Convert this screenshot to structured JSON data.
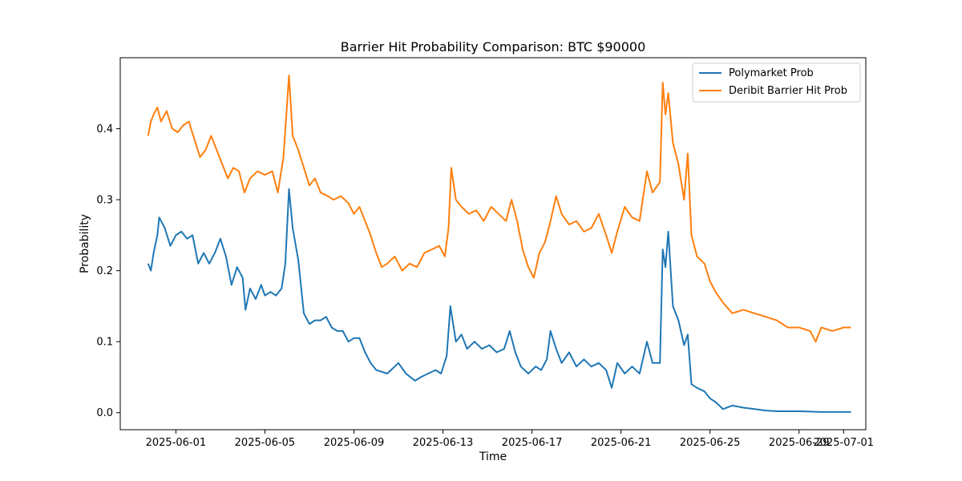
{
  "chart_data": {
    "type": "line",
    "title": "Barrier Hit Probability Comparison: BTC $90000",
    "xlabel": "Time",
    "ylabel": "Probability",
    "xlim": [
      "2025-05-29T12:00",
      "2025-07-02T00:00"
    ],
    "ylim": [
      -0.024,
      0.5
    ],
    "x_ticks": [
      "2025-06-01",
      "2025-06-05",
      "2025-06-09",
      "2025-06-13",
      "2025-06-17",
      "2025-06-21",
      "2025-06-25",
      "2025-06-29",
      "2025-07-01"
    ],
    "y_ticks": [
      0.0,
      0.1,
      0.2,
      0.3,
      0.4
    ],
    "y_tick_labels": [
      "0.0",
      "0.1",
      "0.2",
      "0.3",
      "0.4"
    ],
    "legend_position": "top-right",
    "grid": false,
    "series": [
      {
        "name": "Polymarket Prob",
        "color": "#1f77b4",
        "points": [
          [
            "2025-05-30T18:00",
            0.21
          ],
          [
            "2025-05-30T21:00",
            0.2
          ],
          [
            "2025-05-31T00:00",
            0.225
          ],
          [
            "2025-05-31T04:00",
            0.25
          ],
          [
            "2025-05-31T06:00",
            0.275
          ],
          [
            "2025-05-31T12:00",
            0.26
          ],
          [
            "2025-05-31T18:00",
            0.235
          ],
          [
            "2025-06-01T00:00",
            0.25
          ],
          [
            "2025-06-01T06:00",
            0.255
          ],
          [
            "2025-06-01T12:00",
            0.245
          ],
          [
            "2025-06-01T18:00",
            0.25
          ],
          [
            "2025-06-02T00:00",
            0.21
          ],
          [
            "2025-06-02T06:00",
            0.225
          ],
          [
            "2025-06-02T12:00",
            0.21
          ],
          [
            "2025-06-02T18:00",
            0.225
          ],
          [
            "2025-06-03T00:00",
            0.245
          ],
          [
            "2025-06-03T06:00",
            0.22
          ],
          [
            "2025-06-03T12:00",
            0.18
          ],
          [
            "2025-06-03T18:00",
            0.205
          ],
          [
            "2025-06-04T00:00",
            0.19
          ],
          [
            "2025-06-04T03:00",
            0.145
          ],
          [
            "2025-06-04T08:00",
            0.175
          ],
          [
            "2025-06-04T14:00",
            0.16
          ],
          [
            "2025-06-04T20:00",
            0.18
          ],
          [
            "2025-06-05T00:00",
            0.165
          ],
          [
            "2025-06-05T06:00",
            0.17
          ],
          [
            "2025-06-05T12:00",
            0.165
          ],
          [
            "2025-06-05T18:00",
            0.175
          ],
          [
            "2025-06-05T22:00",
            0.21
          ],
          [
            "2025-06-06T02:00",
            0.315
          ],
          [
            "2025-06-06T06:00",
            0.26
          ],
          [
            "2025-06-06T12:00",
            0.215
          ],
          [
            "2025-06-06T18:00",
            0.14
          ],
          [
            "2025-06-07T00:00",
            0.125
          ],
          [
            "2025-06-07T06:00",
            0.13
          ],
          [
            "2025-06-07T12:00",
            0.13
          ],
          [
            "2025-06-07T18:00",
            0.135
          ],
          [
            "2025-06-08T00:00",
            0.12
          ],
          [
            "2025-06-08T06:00",
            0.115
          ],
          [
            "2025-06-08T12:00",
            0.115
          ],
          [
            "2025-06-08T18:00",
            0.1
          ],
          [
            "2025-06-09T00:00",
            0.105
          ],
          [
            "2025-06-09T06:00",
            0.105
          ],
          [
            "2025-06-09T12:00",
            0.085
          ],
          [
            "2025-06-09T18:00",
            0.07
          ],
          [
            "2025-06-10T00:00",
            0.06
          ],
          [
            "2025-06-10T12:00",
            0.055
          ],
          [
            "2025-06-11T00:00",
            0.07
          ],
          [
            "2025-06-11T08:00",
            0.055
          ],
          [
            "2025-06-11T18:00",
            0.045
          ],
          [
            "2025-06-12T00:00",
            0.05
          ],
          [
            "2025-06-12T08:00",
            0.055
          ],
          [
            "2025-06-12T16:00",
            0.06
          ],
          [
            "2025-06-12T22:00",
            0.055
          ],
          [
            "2025-06-13T04:00",
            0.08
          ],
          [
            "2025-06-13T08:00",
            0.15
          ],
          [
            "2025-06-13T14:00",
            0.1
          ],
          [
            "2025-06-13T20:00",
            0.11
          ],
          [
            "2025-06-14T02:00",
            0.09
          ],
          [
            "2025-06-14T10:00",
            0.1
          ],
          [
            "2025-06-14T18:00",
            0.09
          ],
          [
            "2025-06-15T02:00",
            0.095
          ],
          [
            "2025-06-15T10:00",
            0.085
          ],
          [
            "2025-06-15T18:00",
            0.09
          ],
          [
            "2025-06-16T00:00",
            0.115
          ],
          [
            "2025-06-16T06:00",
            0.085
          ],
          [
            "2025-06-16T12:00",
            0.065
          ],
          [
            "2025-06-16T20:00",
            0.055
          ],
          [
            "2025-06-17T04:00",
            0.065
          ],
          [
            "2025-06-17T10:00",
            0.06
          ],
          [
            "2025-06-17T16:00",
            0.075
          ],
          [
            "2025-06-17T20:00",
            0.115
          ],
          [
            "2025-06-18T02:00",
            0.09
          ],
          [
            "2025-06-18T08:00",
            0.07
          ],
          [
            "2025-06-18T16:00",
            0.085
          ],
          [
            "2025-06-19T00:00",
            0.065
          ],
          [
            "2025-06-19T08:00",
            0.075
          ],
          [
            "2025-06-19T16:00",
            0.065
          ],
          [
            "2025-06-20T00:00",
            0.07
          ],
          [
            "2025-06-20T08:00",
            0.06
          ],
          [
            "2025-06-20T14:00",
            0.035
          ],
          [
            "2025-06-20T20:00",
            0.07
          ],
          [
            "2025-06-21T04:00",
            0.055
          ],
          [
            "2025-06-21T12:00",
            0.065
          ],
          [
            "2025-06-21T20:00",
            0.055
          ],
          [
            "2025-06-22T04:00",
            0.1
          ],
          [
            "2025-06-22T10:00",
            0.07
          ],
          [
            "2025-06-22T18:00",
            0.07
          ],
          [
            "2025-06-22T21:00",
            0.23
          ],
          [
            "2025-06-23T00:00",
            0.205
          ],
          [
            "2025-06-23T03:00",
            0.255
          ],
          [
            "2025-06-23T08:00",
            0.15
          ],
          [
            "2025-06-23T14:00",
            0.13
          ],
          [
            "2025-06-23T20:00",
            0.095
          ],
          [
            "2025-06-24T00:00",
            0.11
          ],
          [
            "2025-06-24T04:00",
            0.04
          ],
          [
            "2025-06-24T10:00",
            0.035
          ],
          [
            "2025-06-24T18:00",
            0.03
          ],
          [
            "2025-06-25T00:00",
            0.02
          ],
          [
            "2025-06-25T06:00",
            0.015
          ],
          [
            "2025-06-25T14:00",
            0.005
          ],
          [
            "2025-06-26T00:00",
            0.01
          ],
          [
            "2025-06-26T12:00",
            0.007
          ],
          [
            "2025-06-27T00:00",
            0.005
          ],
          [
            "2025-06-27T12:00",
            0.003
          ],
          [
            "2025-06-28T00:00",
            0.002
          ],
          [
            "2025-06-29T00:00",
            0.002
          ],
          [
            "2025-06-30T00:00",
            0.001
          ],
          [
            "2025-07-01T00:00",
            0.001
          ],
          [
            "2025-07-01T08:00",
            0.001
          ]
        ]
      },
      {
        "name": "Deribit Barrier Hit Prob",
        "color": "#ff7f0e",
        "points": [
          [
            "2025-05-30T18:00",
            0.39
          ],
          [
            "2025-05-30T21:00",
            0.41
          ],
          [
            "2025-05-31T00:00",
            0.42
          ],
          [
            "2025-05-31T04:00",
            0.43
          ],
          [
            "2025-05-31T08:00",
            0.41
          ],
          [
            "2025-05-31T14:00",
            0.425
          ],
          [
            "2025-05-31T20:00",
            0.4
          ],
          [
            "2025-06-01T02:00",
            0.395
          ],
          [
            "2025-06-01T08:00",
            0.405
          ],
          [
            "2025-06-01T14:00",
            0.41
          ],
          [
            "2025-06-01T20:00",
            0.385
          ],
          [
            "2025-06-02T02:00",
            0.36
          ],
          [
            "2025-06-02T08:00",
            0.37
          ],
          [
            "2025-06-02T14:00",
            0.39
          ],
          [
            "2025-06-02T20:00",
            0.37
          ],
          [
            "2025-06-03T02:00",
            0.35
          ],
          [
            "2025-06-03T08:00",
            0.33
          ],
          [
            "2025-06-03T14:00",
            0.345
          ],
          [
            "2025-06-03T20:00",
            0.34
          ],
          [
            "2025-06-04T02:00",
            0.31
          ],
          [
            "2025-06-04T08:00",
            0.33
          ],
          [
            "2025-06-04T16:00",
            0.34
          ],
          [
            "2025-06-05T00:00",
            0.335
          ],
          [
            "2025-06-05T08:00",
            0.34
          ],
          [
            "2025-06-05T14:00",
            0.31
          ],
          [
            "2025-06-05T20:00",
            0.36
          ],
          [
            "2025-06-06T02:00",
            0.475
          ],
          [
            "2025-06-06T06:00",
            0.39
          ],
          [
            "2025-06-06T12:00",
            0.37
          ],
          [
            "2025-06-06T18:00",
            0.345
          ],
          [
            "2025-06-07T00:00",
            0.32
          ],
          [
            "2025-06-07T06:00",
            0.33
          ],
          [
            "2025-06-07T12:00",
            0.31
          ],
          [
            "2025-06-07T20:00",
            0.305
          ],
          [
            "2025-06-08T02:00",
            0.3
          ],
          [
            "2025-06-08T10:00",
            0.305
          ],
          [
            "2025-06-08T18:00",
            0.295
          ],
          [
            "2025-06-09T00:00",
            0.28
          ],
          [
            "2025-06-09T06:00",
            0.29
          ],
          [
            "2025-06-09T12:00",
            0.27
          ],
          [
            "2025-06-09T18:00",
            0.25
          ],
          [
            "2025-06-10T00:00",
            0.225
          ],
          [
            "2025-06-10T06:00",
            0.205
          ],
          [
            "2025-06-10T12:00",
            0.21
          ],
          [
            "2025-06-10T20:00",
            0.22
          ],
          [
            "2025-06-11T04:00",
            0.2
          ],
          [
            "2025-06-11T12:00",
            0.21
          ],
          [
            "2025-06-11T20:00",
            0.205
          ],
          [
            "2025-06-12T04:00",
            0.225
          ],
          [
            "2025-06-12T12:00",
            0.23
          ],
          [
            "2025-06-12T20:00",
            0.235
          ],
          [
            "2025-06-13T02:00",
            0.22
          ],
          [
            "2025-06-13T06:00",
            0.26
          ],
          [
            "2025-06-13T09:00",
            0.345
          ],
          [
            "2025-06-13T14:00",
            0.3
          ],
          [
            "2025-06-13T20:00",
            0.29
          ],
          [
            "2025-06-14T04:00",
            0.28
          ],
          [
            "2025-06-14T12:00",
            0.285
          ],
          [
            "2025-06-14T20:00",
            0.27
          ],
          [
            "2025-06-15T04:00",
            0.29
          ],
          [
            "2025-06-15T12:00",
            0.28
          ],
          [
            "2025-06-15T20:00",
            0.27
          ],
          [
            "2025-06-16T02:00",
            0.3
          ],
          [
            "2025-06-16T08:00",
            0.27
          ],
          [
            "2025-06-16T14:00",
            0.23
          ],
          [
            "2025-06-16T20:00",
            0.205
          ],
          [
            "2025-06-17T02:00",
            0.19
          ],
          [
            "2025-06-17T08:00",
            0.225
          ],
          [
            "2025-06-17T14:00",
            0.24
          ],
          [
            "2025-06-17T20:00",
            0.27
          ],
          [
            "2025-06-18T02:00",
            0.305
          ],
          [
            "2025-06-18T08:00",
            0.28
          ],
          [
            "2025-06-18T16:00",
            0.265
          ],
          [
            "2025-06-19T00:00",
            0.27
          ],
          [
            "2025-06-19T08:00",
            0.255
          ],
          [
            "2025-06-19T16:00",
            0.26
          ],
          [
            "2025-06-20T00:00",
            0.28
          ],
          [
            "2025-06-20T08:00",
            0.25
          ],
          [
            "2025-06-20T14:00",
            0.225
          ],
          [
            "2025-06-20T20:00",
            0.255
          ],
          [
            "2025-06-21T04:00",
            0.29
          ],
          [
            "2025-06-21T12:00",
            0.275
          ],
          [
            "2025-06-21T20:00",
            0.27
          ],
          [
            "2025-06-22T04:00",
            0.34
          ],
          [
            "2025-06-22T10:00",
            0.31
          ],
          [
            "2025-06-22T18:00",
            0.325
          ],
          [
            "2025-06-22T21:00",
            0.465
          ],
          [
            "2025-06-23T00:00",
            0.42
          ],
          [
            "2025-06-23T03:00",
            0.45
          ],
          [
            "2025-06-23T08:00",
            0.38
          ],
          [
            "2025-06-23T14:00",
            0.35
          ],
          [
            "2025-06-23T20:00",
            0.3
          ],
          [
            "2025-06-24T00:00",
            0.365
          ],
          [
            "2025-06-24T04:00",
            0.25
          ],
          [
            "2025-06-24T10:00",
            0.22
          ],
          [
            "2025-06-24T18:00",
            0.21
          ],
          [
            "2025-06-25T00:00",
            0.185
          ],
          [
            "2025-06-25T06:00",
            0.17
          ],
          [
            "2025-06-25T14:00",
            0.155
          ],
          [
            "2025-06-26T00:00",
            0.14
          ],
          [
            "2025-06-26T12:00",
            0.145
          ],
          [
            "2025-06-27T00:00",
            0.14
          ],
          [
            "2025-06-27T12:00",
            0.135
          ],
          [
            "2025-06-28T00:00",
            0.13
          ],
          [
            "2025-06-28T12:00",
            0.12
          ],
          [
            "2025-06-29T00:00",
            0.12
          ],
          [
            "2025-06-29T12:00",
            0.115
          ],
          [
            "2025-06-29T18:00",
            0.1
          ],
          [
            "2025-06-30T00:00",
            0.12
          ],
          [
            "2025-06-30T12:00",
            0.115
          ],
          [
            "2025-07-01T00:00",
            0.12
          ],
          [
            "2025-07-01T08:00",
            0.12
          ]
        ]
      }
    ]
  }
}
